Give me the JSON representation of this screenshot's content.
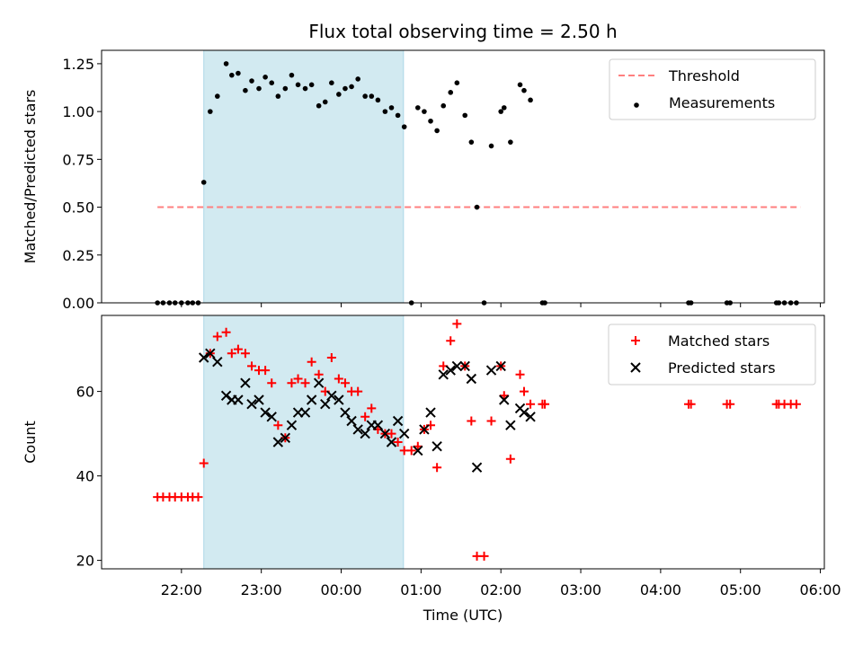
{
  "title": "Flux total observing time = 2.50 h",
  "shaded_span": {
    "start": 22.28,
    "end": 24.78,
    "color": "#add8e6"
  },
  "x_axis": {
    "label": "Time (UTC)",
    "range": [
      21.0,
      30.05
    ],
    "ticks": [
      {
        "v": 22,
        "label": "22:00"
      },
      {
        "v": 23,
        "label": "23:00"
      },
      {
        "v": 24,
        "label": "00:00"
      },
      {
        "v": 25,
        "label": "01:00"
      },
      {
        "v": 26,
        "label": "02:00"
      },
      {
        "v": 27,
        "label": "03:00"
      },
      {
        "v": 28,
        "label": "04:00"
      },
      {
        "v": 29,
        "label": "05:00"
      },
      {
        "v": 30,
        "label": "06:00"
      }
    ]
  },
  "chart_data": [
    {
      "type": "scatter",
      "ylabel": "Matched/Predicted stars",
      "ylim": [
        0,
        1.32
      ],
      "yticks": [
        {
          "v": 0,
          "label": "0.00"
        },
        {
          "v": 0.25,
          "label": "0.25"
        },
        {
          "v": 0.5,
          "label": "0.50"
        },
        {
          "v": 0.75,
          "label": "0.75"
        },
        {
          "v": 1.0,
          "label": "1.00"
        },
        {
          "v": 1.25,
          "label": "1.25"
        }
      ],
      "legend": {
        "placement": "top-right",
        "entries": [
          "Threshold",
          "Measurements"
        ]
      },
      "threshold": {
        "name": "Threshold",
        "value": 0.5,
        "x_start": 21.7,
        "x_end": 29.75,
        "color": "#ff7f7f"
      },
      "series": [
        {
          "name": "Measurements",
          "color": "#000000",
          "x": [
            21.7,
            21.77,
            21.85,
            21.92,
            22.0,
            22.08,
            22.14,
            22.21,
            22.28,
            22.36,
            22.45,
            22.56,
            22.63,
            22.71,
            22.8,
            22.88,
            22.97,
            23.05,
            23.13,
            23.21,
            23.3,
            23.38,
            23.46,
            23.55,
            23.63,
            23.72,
            23.8,
            23.88,
            23.97,
            24.05,
            24.13,
            24.21,
            24.3,
            24.38,
            24.46,
            24.55,
            24.63,
            24.71,
            24.79,
            24.88,
            24.96,
            25.04,
            25.12,
            25.2,
            25.28,
            25.37,
            25.45,
            25.55,
            25.63,
            25.7,
            25.79,
            25.88,
            26.0,
            26.04,
            26.12,
            26.24,
            26.29,
            26.37,
            26.52,
            26.55,
            28.35,
            28.38,
            28.83,
            28.87,
            29.45,
            29.48,
            29.55,
            29.63,
            29.7
          ],
          "y": [
            0,
            0,
            0,
            0,
            0,
            0,
            0,
            0,
            0.63,
            1.0,
            1.08,
            1.25,
            1.19,
            1.2,
            1.11,
            1.16,
            1.12,
            1.18,
            1.15,
            1.08,
            1.12,
            1.19,
            1.14,
            1.12,
            1.14,
            1.03,
            1.05,
            1.15,
            1.09,
            1.12,
            1.13,
            1.17,
            1.08,
            1.08,
            1.06,
            1.0,
            1.02,
            0.98,
            0.92,
            0,
            1.02,
            1.0,
            0.95,
            0.9,
            1.03,
            1.1,
            1.15,
            0.98,
            0.84,
            0.5,
            0,
            0.82,
            1.0,
            1.02,
            0.84,
            1.14,
            1.11,
            1.06,
            0,
            0,
            0,
            0,
            0,
            0,
            0,
            0,
            0,
            0,
            0
          ]
        }
      ]
    },
    {
      "type": "scatter",
      "ylabel": "Count",
      "xlabel": "Time (UTC)",
      "ylim": [
        18,
        78
      ],
      "yticks": [
        {
          "v": 20,
          "label": "20"
        },
        {
          "v": 40,
          "label": "40"
        },
        {
          "v": 60,
          "label": "60"
        }
      ],
      "legend": {
        "placement": "top-right",
        "entries": [
          "Matched stars",
          "Predicted stars"
        ]
      },
      "series": [
        {
          "name": "Matched stars",
          "marker": "plus",
          "color": "#ff0000",
          "x": [
            21.7,
            21.77,
            21.85,
            21.92,
            22.0,
            22.08,
            22.14,
            22.21,
            22.28,
            22.36,
            22.45,
            22.56,
            22.63,
            22.71,
            22.8,
            22.88,
            22.97,
            23.05,
            23.13,
            23.21,
            23.3,
            23.38,
            23.46,
            23.55,
            23.63,
            23.72,
            23.8,
            23.88,
            23.97,
            24.05,
            24.13,
            24.21,
            24.3,
            24.38,
            24.46,
            24.55,
            24.63,
            24.71,
            24.79,
            24.88,
            24.96,
            25.04,
            25.12,
            25.2,
            25.28,
            25.37,
            25.45,
            25.55,
            25.63,
            25.7,
            25.79,
            25.88,
            26.0,
            26.04,
            26.12,
            26.24,
            26.29,
            26.37,
            26.52,
            26.55,
            28.35,
            28.38,
            28.83,
            28.87,
            29.45,
            29.48,
            29.55,
            29.63,
            29.7
          ],
          "y": [
            35,
            35,
            35,
            35,
            35,
            35,
            35,
            35,
            43,
            69,
            73,
            74,
            69,
            70,
            69,
            66,
            65,
            65,
            62,
            52,
            49,
            62,
            63,
            62,
            67,
            64,
            60,
            68,
            63,
            62,
            60,
            60,
            54,
            56,
            51,
            50,
            50,
            48,
            46,
            46,
            47,
            51,
            52,
            42,
            66,
            72,
            76,
            66,
            53,
            21,
            21,
            53,
            66,
            59,
            44,
            64,
            60,
            57,
            57,
            57,
            57,
            57,
            57,
            57,
            57,
            57,
            57,
            57,
            57
          ]
        },
        {
          "name": "Predicted stars",
          "marker": "x",
          "color": "#000000",
          "x": [
            22.28,
            22.36,
            22.45,
            22.56,
            22.63,
            22.71,
            22.8,
            22.88,
            22.97,
            23.05,
            23.13,
            23.21,
            23.3,
            23.38,
            23.46,
            23.55,
            23.63,
            23.72,
            23.8,
            23.88,
            23.97,
            24.05,
            24.13,
            24.21,
            24.3,
            24.38,
            24.46,
            24.55,
            24.63,
            24.71,
            24.79,
            24.96,
            25.04,
            25.12,
            25.2,
            25.28,
            25.37,
            25.45,
            25.55,
            25.63,
            25.7,
            25.88,
            26.0,
            26.04,
            26.12,
            26.24,
            26.29,
            26.37
          ],
          "y": [
            68,
            69,
            67,
            59,
            58,
            58,
            62,
            57,
            58,
            55,
            54,
            48,
            49,
            52,
            55,
            55,
            58,
            62,
            57,
            59,
            58,
            55,
            53,
            51,
            50,
            52,
            52,
            50,
            48,
            53,
            50,
            46,
            51,
            55,
            47,
            64,
            65,
            66,
            66,
            63,
            42,
            65,
            66,
            58,
            52,
            56,
            55,
            54
          ]
        }
      ]
    }
  ]
}
